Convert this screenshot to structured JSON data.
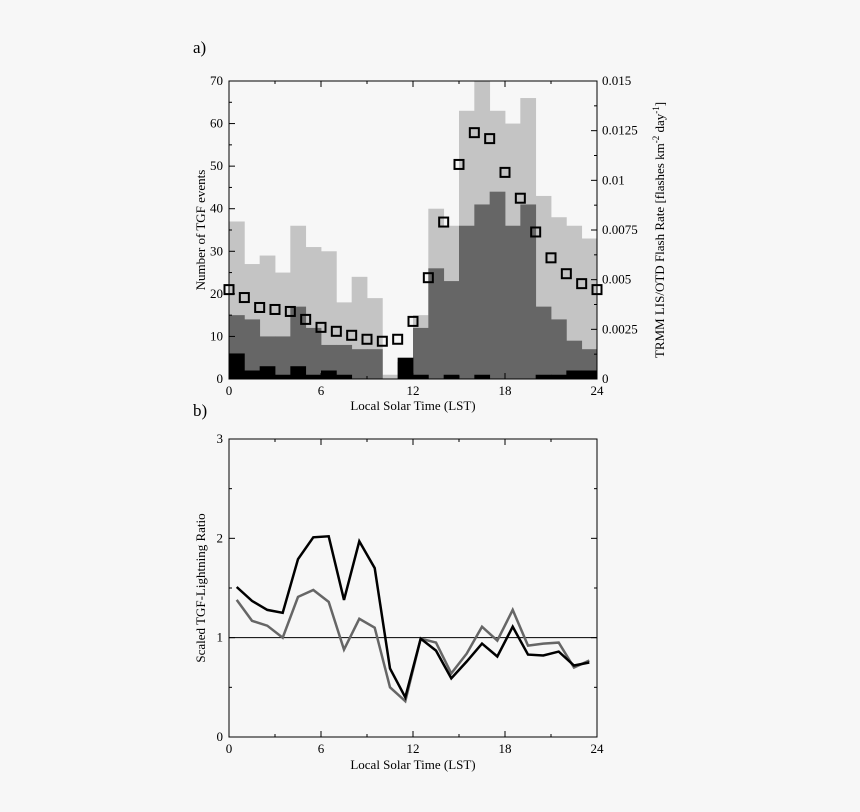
{
  "chart_data": [
    {
      "panel_label": "a)",
      "type": "bar",
      "x": [
        0,
        1,
        2,
        3,
        4,
        5,
        6,
        7,
        8,
        9,
        10,
        11,
        12,
        13,
        14,
        15,
        16,
        17,
        18,
        19,
        20,
        21,
        22,
        23
      ],
      "xlabel": "Local Solar Time (LST)",
      "ylabel": "Number of TGF events",
      "y2label": "TRMM LIS/OTD Flash Rate [flashes km",
      "y2label_sup1": "-2",
      "y2label_mid": " day",
      "y2label_sup2": "-1",
      "y2label_end": "]",
      "xlim": [
        0,
        24
      ],
      "ylim": [
        0,
        70
      ],
      "y2lim": [
        0,
        0.015
      ],
      "xticks": [
        "0",
        "6",
        "12",
        "18",
        "24"
      ],
      "yticks": [
        "0",
        "10",
        "20",
        "30",
        "40",
        "50",
        "60",
        "70"
      ],
      "y2ticks": [
        "0",
        "0.0025",
        "0.005",
        "0.0075",
        "0.01",
        "0.0125",
        "0.015"
      ],
      "colors": {
        "light": "#c4c4c4",
        "medium": "#666666",
        "dark": "#000000"
      },
      "series": [
        {
          "values": [
            37,
            27,
            29,
            25,
            36,
            31,
            30,
            18,
            24,
            19,
            1,
            5,
            15,
            40,
            36,
            63,
            70,
            63,
            60,
            66,
            43,
            38,
            36,
            33
          ]
        },
        {
          "values": [
            15,
            14,
            10,
            10,
            17,
            12,
            8,
            8,
            7,
            7,
            0,
            4,
            12,
            26,
            23,
            36,
            41,
            44,
            36,
            41,
            17,
            14,
            9,
            7
          ]
        },
        {
          "values": [
            6,
            2,
            3,
            1,
            3,
            1,
            2,
            1,
            0,
            0,
            0,
            5,
            1,
            0,
            1,
            0,
            1,
            0,
            0,
            0,
            1,
            1,
            2,
            2
          ]
        },
        {
          "type": "scatter",
          "marker": "square",
          "x": [
            0,
            1,
            2,
            3,
            4,
            5,
            6,
            7,
            8,
            9,
            10,
            11,
            12,
            13,
            14,
            15,
            16,
            17,
            18,
            19,
            20,
            21,
            22,
            23,
            24
          ],
          "values": [
            0.0045,
            0.0041,
            0.0036,
            0.0035,
            0.0034,
            0.003,
            0.0026,
            0.0024,
            0.0022,
            0.002,
            0.0019,
            0.002,
            0.0029,
            0.0051,
            0.0079,
            0.0108,
            0.0124,
            0.0121,
            0.0104,
            0.0091,
            0.0074,
            0.0061,
            0.0053,
            0.0048,
            0.0045
          ]
        }
      ]
    },
    {
      "panel_label": "b)",
      "type": "line",
      "xlabel": "Local Solar Time (LST)",
      "ylabel": "Scaled TGF-Lightning Ratio",
      "xlim": [
        0,
        24
      ],
      "ylim": [
        0,
        3
      ],
      "xticks": [
        "0",
        "6",
        "12",
        "18",
        "24"
      ],
      "yticks": [
        "0",
        "1",
        "2",
        "3"
      ],
      "reference_line": 1,
      "colors": {
        "black": "#000000",
        "gray": "#666666"
      },
      "series": [
        {
          "color": "#000000",
          "x": [
            0.5,
            1.5,
            2.5,
            3.5,
            4.5,
            5.5,
            6.5,
            7.5,
            8.5,
            9.5,
            10.5,
            11.5,
            12.5,
            13.5,
            14.5,
            15.5,
            16.5,
            17.5,
            18.5,
            19.5,
            20.5,
            21.5,
            22.5,
            23.5
          ],
          "values": [
            1.51,
            1.37,
            1.28,
            1.25,
            1.79,
            2.01,
            2.02,
            1.38,
            1.97,
            1.7,
            0.69,
            0.4,
            0.99,
            0.87,
            0.59,
            0.76,
            0.94,
            0.81,
            1.11,
            0.83,
            0.82,
            0.86,
            0.72,
            0.75
          ]
        },
        {
          "color": "#666666",
          "x": [
            0.5,
            1.5,
            2.5,
            3.5,
            4.5,
            5.5,
            6.5,
            7.5,
            8.5,
            9.5,
            10.5,
            11.5,
            12.5,
            13.5,
            14.5,
            15.5,
            16.5,
            17.5,
            18.5,
            19.5,
            20.5,
            21.5,
            22.5,
            23.5
          ],
          "values": [
            1.38,
            1.17,
            1.12,
            1.0,
            1.41,
            1.48,
            1.36,
            0.88,
            1.19,
            1.1,
            0.5,
            0.36,
            0.99,
            0.95,
            0.64,
            0.84,
            1.11,
            0.97,
            1.28,
            0.92,
            0.94,
            0.95,
            0.7,
            0.77
          ]
        }
      ]
    }
  ]
}
